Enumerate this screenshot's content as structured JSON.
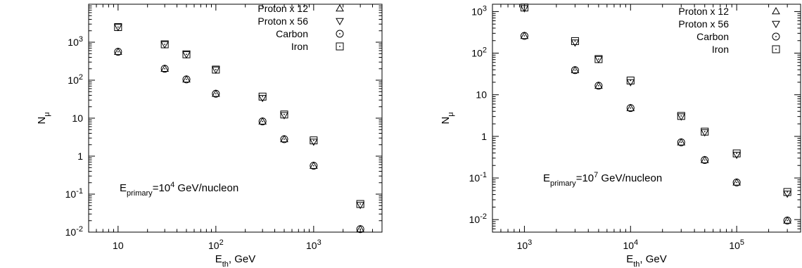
{
  "chart_data": [
    {
      "type": "scatter",
      "xscale": "log",
      "yscale": "log",
      "xlim": [
        5,
        5000
      ],
      "ylim": [
        0.01,
        10000
      ],
      "x_ticks": [
        {
          "value": 10,
          "base": "10",
          "exp": ""
        },
        {
          "value": 100,
          "base": "10",
          "exp": "2"
        },
        {
          "value": 1000,
          "base": "10",
          "exp": "3"
        }
      ],
      "y_ticks": [
        {
          "value": 0.01,
          "base": "10",
          "exp": "-2"
        },
        {
          "value": 0.1,
          "base": "10",
          "exp": "-1"
        },
        {
          "value": 1,
          "base": "1",
          "exp": ""
        },
        {
          "value": 10,
          "base": "10",
          "exp": ""
        },
        {
          "value": 100,
          "base": "10",
          "exp": "2"
        },
        {
          "value": 1000,
          "base": "10",
          "exp": "3"
        }
      ],
      "xlabel": {
        "main": "E",
        "sub": "th",
        "rest": ", GeV"
      },
      "ylabel": {
        "main": "N",
        "sub": "μ"
      },
      "annotation": {
        "pre": "E",
        "sub": "primary",
        "mid": "=10",
        "sup": "4",
        "post": " GeV/nucleon"
      },
      "legend_position": "top-right",
      "series": [
        {
          "name": "Proton x 12",
          "marker": "triangle-up",
          "x": [
            10,
            30,
            50,
            100,
            300,
            500,
            1000,
            3000
          ],
          "y": [
            560,
            200,
            105,
            44,
            8.2,
            2.8,
            0.56,
            0.012
          ]
        },
        {
          "name": "Proton x 56",
          "marker": "triangle-down",
          "x": [
            10,
            30,
            50,
            100,
            300,
            500,
            1000,
            3000
          ],
          "y": [
            2500,
            880,
            480,
            190,
            34,
            12,
            2.4,
            0.052
          ]
        },
        {
          "name": "Carbon",
          "marker": "circle-dot",
          "x": [
            10,
            30,
            50,
            100,
            300,
            500,
            1000,
            3000
          ],
          "y": [
            560,
            200,
            105,
            44,
            8.2,
            2.8,
            0.56,
            0.012
          ]
        },
        {
          "name": "Iron",
          "marker": "square-dot",
          "x": [
            10,
            30,
            50,
            100,
            300,
            500,
            1000,
            3000
          ],
          "y": [
            2500,
            880,
            480,
            190,
            37,
            12.5,
            2.6,
            0.055
          ]
        }
      ]
    },
    {
      "type": "scatter",
      "xscale": "log",
      "yscale": "log",
      "xlim": [
        500,
        400000
      ],
      "ylim": [
        0.005,
        1500
      ],
      "x_ticks": [
        {
          "value": 1000,
          "base": "10",
          "exp": "3"
        },
        {
          "value": 10000,
          "base": "10",
          "exp": "4"
        },
        {
          "value": 100000,
          "base": "10",
          "exp": "5"
        }
      ],
      "y_ticks": [
        {
          "value": 0.01,
          "base": "10",
          "exp": "-2"
        },
        {
          "value": 0.1,
          "base": "10",
          "exp": "-1"
        },
        {
          "value": 1,
          "base": "1",
          "exp": ""
        },
        {
          "value": 10,
          "base": "10",
          "exp": ""
        },
        {
          "value": 100,
          "base": "10",
          "exp": "2"
        },
        {
          "value": 1000,
          "base": "10",
          "exp": "3"
        }
      ],
      "xlabel": {
        "main": "E",
        "sub": "th",
        "rest": ", GeV"
      },
      "ylabel": {
        "main": "N",
        "sub": "μ"
      },
      "annotation": {
        "pre": "E",
        "sub": "primary",
        "mid": "=10",
        "sup": "7",
        "post": " GeV/nucleon"
      },
      "legend_position": "top-right",
      "series": [
        {
          "name": "Proton x 12",
          "marker": "triangle-up",
          "x": [
            1000,
            3000,
            5000,
            10000,
            30000,
            50000,
            100000,
            300000
          ],
          "y": [
            260,
            39,
            16.5,
            4.8,
            0.72,
            0.27,
            0.078,
            0.0095
          ]
        },
        {
          "name": "Proton x 56",
          "marker": "triangle-down",
          "x": [
            1000,
            3000,
            5000,
            10000,
            30000,
            50000,
            100000,
            300000
          ],
          "y": [
            1200,
            180,
            72,
            20,
            3.0,
            1.25,
            0.36,
            0.042
          ]
        },
        {
          "name": "Carbon",
          "marker": "circle-dot",
          "x": [
            1000,
            3000,
            5000,
            10000,
            30000,
            50000,
            100000,
            300000
          ],
          "y": [
            260,
            39,
            16.5,
            4.8,
            0.72,
            0.27,
            0.078,
            0.0095
          ]
        },
        {
          "name": "Iron",
          "marker": "square-dot",
          "x": [
            1000,
            3000,
            5000,
            10000,
            30000,
            50000,
            100000,
            300000
          ],
          "y": [
            1250,
            195,
            72,
            22,
            3.1,
            1.3,
            0.39,
            0.046
          ]
        }
      ]
    }
  ]
}
